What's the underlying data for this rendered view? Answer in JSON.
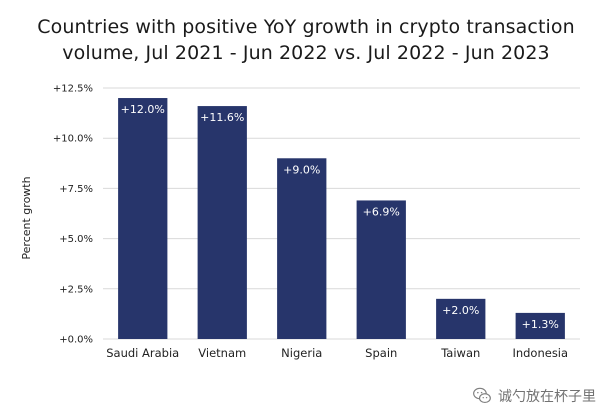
{
  "chart_data": {
    "type": "bar",
    "title_line1": "Countries with positive YoY growth in crypto transaction",
    "title_line2": "volume, Jul 2021 - Jun 2022 vs. Jul 2022 - Jun 2023",
    "ylabel": "Percent growth",
    "xlabel": "",
    "categories": [
      "Saudi Arabia",
      "Vietnam",
      "Nigeria",
      "Spain",
      "Taiwan",
      "Indonesia"
    ],
    "values": [
      12.0,
      11.6,
      9.0,
      6.9,
      2.0,
      1.3
    ],
    "data_labels": [
      "+12.0%",
      "+11.6%",
      "+9.0%",
      "+6.9%",
      "+2.0%",
      "+1.3%"
    ],
    "ylim": [
      0,
      12.5
    ],
    "yticks": [
      0,
      2.5,
      5,
      7.5,
      10,
      12.5
    ],
    "ytick_labels": [
      "+0.0%",
      "+2.5%",
      "+5.0%",
      "+7.5%",
      "+10.0%",
      "+12.5%"
    ],
    "grid": true,
    "bar_color": "#27356b",
    "grid_color": "#d9d9d9"
  },
  "watermark": {
    "text": "诚勺放在杯子里",
    "icon": "wechat-icon"
  }
}
